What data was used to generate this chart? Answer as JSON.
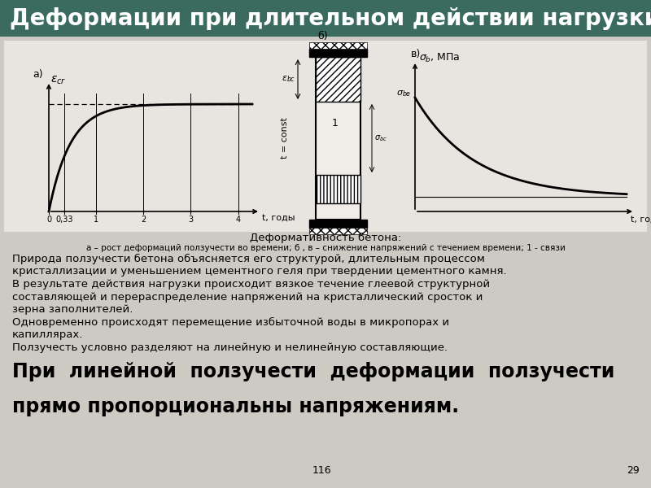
{
  "title": "Деформации при длительном действии нагрузки",
  "title_bg_color": "#3a6b5e",
  "title_text_color": "#ffffff",
  "bg_color": "#cdc9c3",
  "caption_line1": "Деформативность бетона:",
  "caption_line2": "а – рост деформаций ползучести во времени; б , в – снижение напряжений с течением времени; 1 - связи",
  "body_text_lines": [
    "Природа ползучести бетона объясняется его структурой, длительным процессом",
    "кристаллизации и уменьшением цементного геля при твердении цементного камня.",
    "В результате действия нагрузки происходит вязкое течение глеевой структурной",
    "составляющей и перераспределение напряжений на кристаллический сросток и",
    "зерна заполнителей.",
    "Одновременно происходят перемещение избыточной воды в микропорах и",
    "капиллярах.",
    "Ползучесть условно разделяют на линейную и нелинейную составляющие."
  ],
  "large_text_line1": "При  линейной  ползучести  деформации  ползучести",
  "large_text_line2": "прямо пропорциональны напряжениям.",
  "page_number": "116",
  "slide_number": "29"
}
